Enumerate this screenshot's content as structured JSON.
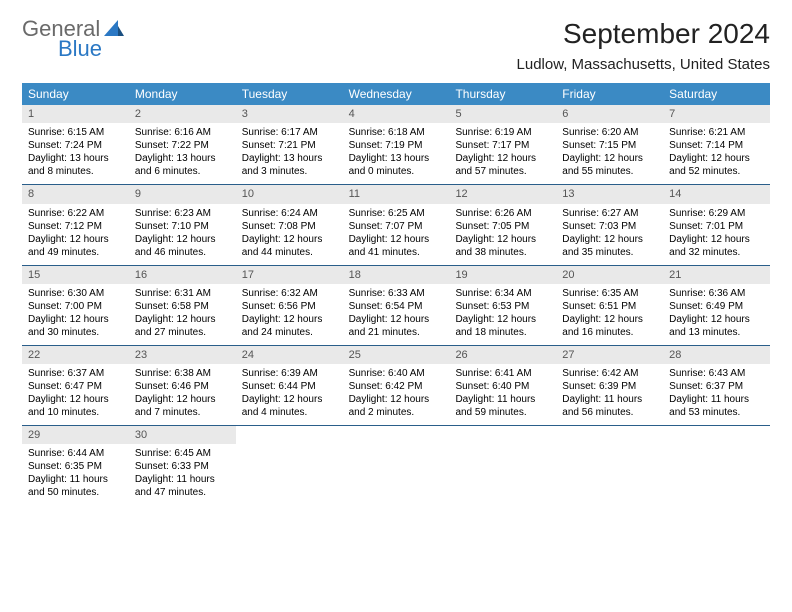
{
  "logo": {
    "text1": "General",
    "text2": "Blue"
  },
  "title": "September 2024",
  "location": "Ludlow, Massachusetts, United States",
  "colors": {
    "header_bg": "#3b8ac4",
    "header_text": "#ffffff",
    "daynum_bg": "#e9e9e9",
    "week_divider": "#2a5e8a",
    "logo_gray": "#6a6a6a",
    "logo_blue": "#2b78c4"
  },
  "weekdays": [
    "Sunday",
    "Monday",
    "Tuesday",
    "Wednesday",
    "Thursday",
    "Friday",
    "Saturday"
  ],
  "weeks": [
    [
      {
        "n": "1",
        "sr": "Sunrise: 6:15 AM",
        "ss": "Sunset: 7:24 PM",
        "d1": "Daylight: 13 hours",
        "d2": "and 8 minutes."
      },
      {
        "n": "2",
        "sr": "Sunrise: 6:16 AM",
        "ss": "Sunset: 7:22 PM",
        "d1": "Daylight: 13 hours",
        "d2": "and 6 minutes."
      },
      {
        "n": "3",
        "sr": "Sunrise: 6:17 AM",
        "ss": "Sunset: 7:21 PM",
        "d1": "Daylight: 13 hours",
        "d2": "and 3 minutes."
      },
      {
        "n": "4",
        "sr": "Sunrise: 6:18 AM",
        "ss": "Sunset: 7:19 PM",
        "d1": "Daylight: 13 hours",
        "d2": "and 0 minutes."
      },
      {
        "n": "5",
        "sr": "Sunrise: 6:19 AM",
        "ss": "Sunset: 7:17 PM",
        "d1": "Daylight: 12 hours",
        "d2": "and 57 minutes."
      },
      {
        "n": "6",
        "sr": "Sunrise: 6:20 AM",
        "ss": "Sunset: 7:15 PM",
        "d1": "Daylight: 12 hours",
        "d2": "and 55 minutes."
      },
      {
        "n": "7",
        "sr": "Sunrise: 6:21 AM",
        "ss": "Sunset: 7:14 PM",
        "d1": "Daylight: 12 hours",
        "d2": "and 52 minutes."
      }
    ],
    [
      {
        "n": "8",
        "sr": "Sunrise: 6:22 AM",
        "ss": "Sunset: 7:12 PM",
        "d1": "Daylight: 12 hours",
        "d2": "and 49 minutes."
      },
      {
        "n": "9",
        "sr": "Sunrise: 6:23 AM",
        "ss": "Sunset: 7:10 PM",
        "d1": "Daylight: 12 hours",
        "d2": "and 46 minutes."
      },
      {
        "n": "10",
        "sr": "Sunrise: 6:24 AM",
        "ss": "Sunset: 7:08 PM",
        "d1": "Daylight: 12 hours",
        "d2": "and 44 minutes."
      },
      {
        "n": "11",
        "sr": "Sunrise: 6:25 AM",
        "ss": "Sunset: 7:07 PM",
        "d1": "Daylight: 12 hours",
        "d2": "and 41 minutes."
      },
      {
        "n": "12",
        "sr": "Sunrise: 6:26 AM",
        "ss": "Sunset: 7:05 PM",
        "d1": "Daylight: 12 hours",
        "d2": "and 38 minutes."
      },
      {
        "n": "13",
        "sr": "Sunrise: 6:27 AM",
        "ss": "Sunset: 7:03 PM",
        "d1": "Daylight: 12 hours",
        "d2": "and 35 minutes."
      },
      {
        "n": "14",
        "sr": "Sunrise: 6:29 AM",
        "ss": "Sunset: 7:01 PM",
        "d1": "Daylight: 12 hours",
        "d2": "and 32 minutes."
      }
    ],
    [
      {
        "n": "15",
        "sr": "Sunrise: 6:30 AM",
        "ss": "Sunset: 7:00 PM",
        "d1": "Daylight: 12 hours",
        "d2": "and 30 minutes."
      },
      {
        "n": "16",
        "sr": "Sunrise: 6:31 AM",
        "ss": "Sunset: 6:58 PM",
        "d1": "Daylight: 12 hours",
        "d2": "and 27 minutes."
      },
      {
        "n": "17",
        "sr": "Sunrise: 6:32 AM",
        "ss": "Sunset: 6:56 PM",
        "d1": "Daylight: 12 hours",
        "d2": "and 24 minutes."
      },
      {
        "n": "18",
        "sr": "Sunrise: 6:33 AM",
        "ss": "Sunset: 6:54 PM",
        "d1": "Daylight: 12 hours",
        "d2": "and 21 minutes."
      },
      {
        "n": "19",
        "sr": "Sunrise: 6:34 AM",
        "ss": "Sunset: 6:53 PM",
        "d1": "Daylight: 12 hours",
        "d2": "and 18 minutes."
      },
      {
        "n": "20",
        "sr": "Sunrise: 6:35 AM",
        "ss": "Sunset: 6:51 PM",
        "d1": "Daylight: 12 hours",
        "d2": "and 16 minutes."
      },
      {
        "n": "21",
        "sr": "Sunrise: 6:36 AM",
        "ss": "Sunset: 6:49 PM",
        "d1": "Daylight: 12 hours",
        "d2": "and 13 minutes."
      }
    ],
    [
      {
        "n": "22",
        "sr": "Sunrise: 6:37 AM",
        "ss": "Sunset: 6:47 PM",
        "d1": "Daylight: 12 hours",
        "d2": "and 10 minutes."
      },
      {
        "n": "23",
        "sr": "Sunrise: 6:38 AM",
        "ss": "Sunset: 6:46 PM",
        "d1": "Daylight: 12 hours",
        "d2": "and 7 minutes."
      },
      {
        "n": "24",
        "sr": "Sunrise: 6:39 AM",
        "ss": "Sunset: 6:44 PM",
        "d1": "Daylight: 12 hours",
        "d2": "and 4 minutes."
      },
      {
        "n": "25",
        "sr": "Sunrise: 6:40 AM",
        "ss": "Sunset: 6:42 PM",
        "d1": "Daylight: 12 hours",
        "d2": "and 2 minutes."
      },
      {
        "n": "26",
        "sr": "Sunrise: 6:41 AM",
        "ss": "Sunset: 6:40 PM",
        "d1": "Daylight: 11 hours",
        "d2": "and 59 minutes."
      },
      {
        "n": "27",
        "sr": "Sunrise: 6:42 AM",
        "ss": "Sunset: 6:39 PM",
        "d1": "Daylight: 11 hours",
        "d2": "and 56 minutes."
      },
      {
        "n": "28",
        "sr": "Sunrise: 6:43 AM",
        "ss": "Sunset: 6:37 PM",
        "d1": "Daylight: 11 hours",
        "d2": "and 53 minutes."
      }
    ],
    [
      {
        "n": "29",
        "sr": "Sunrise: 6:44 AM",
        "ss": "Sunset: 6:35 PM",
        "d1": "Daylight: 11 hours",
        "d2": "and 50 minutes."
      },
      {
        "n": "30",
        "sr": "Sunrise: 6:45 AM",
        "ss": "Sunset: 6:33 PM",
        "d1": "Daylight: 11 hours",
        "d2": "and 47 minutes."
      },
      {
        "empty": true
      },
      {
        "empty": true
      },
      {
        "empty": true
      },
      {
        "empty": true
      },
      {
        "empty": true
      }
    ]
  ]
}
